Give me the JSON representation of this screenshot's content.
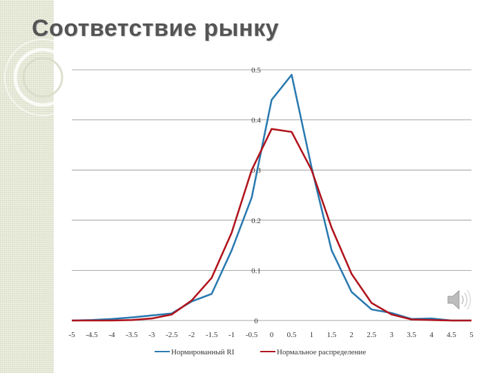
{
  "slide": {
    "title": "Соответствие рынку"
  },
  "icons": {
    "speaker": "speaker-icon"
  },
  "colors": {
    "series1": "#2a7ab0",
    "series2": "#b0141c",
    "grid": "#8c8c8c"
  },
  "chart_data": {
    "type": "line",
    "title": "",
    "xlabel": "",
    "ylabel": "",
    "x": [
      -5,
      -4.5,
      -4,
      -3.5,
      -3,
      -2.5,
      -2,
      -1.5,
      -1,
      -0.5,
      0,
      0.5,
      1,
      1.5,
      2,
      2.5,
      3,
      3.5,
      4,
      4.5,
      5
    ],
    "x_tick_labels": [
      "-5",
      "-4.5",
      "-4",
      "-3.5",
      "-3",
      "-2.5",
      "-2",
      "-1.5",
      "-1",
      "-0.5",
      "0",
      "0.5",
      "1",
      "1.5",
      "2",
      "2.5",
      "3",
      "3.5",
      "4",
      "4.5",
      "5"
    ],
    "y_tick_labels": [
      "0",
      "0.1",
      "0.2",
      "0.3",
      "0.4",
      "0.5"
    ],
    "ylim": [
      0,
      0.5
    ],
    "grid": "horizontal",
    "legend_position": "bottom",
    "series": [
      {
        "name": "Нормированный RI",
        "color": "#2a7ab0",
        "values": [
          0,
          0.001,
          0.003,
          0.006,
          0.01,
          0.014,
          0.038,
          0.053,
          0.14,
          0.245,
          0.44,
          0.49,
          0.305,
          0.14,
          0.057,
          0.022,
          0.015,
          0.003,
          0.004,
          0.0,
          0.0
        ]
      },
      {
        "name": "Нормальное распределение",
        "color": "#b0141c",
        "values": [
          0,
          0.0,
          0.0,
          0.001,
          0.004,
          0.012,
          0.04,
          0.085,
          0.175,
          0.3,
          0.382,
          0.376,
          0.3,
          0.185,
          0.093,
          0.035,
          0.012,
          0.002,
          0.001,
          0.0,
          0.0
        ]
      }
    ]
  }
}
